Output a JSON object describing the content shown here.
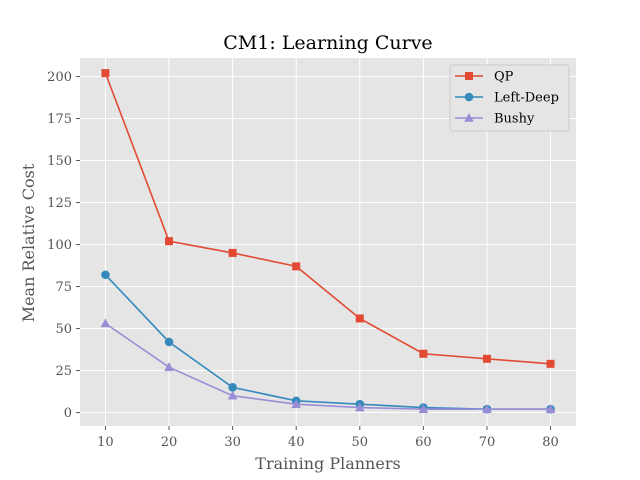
{
  "chart_data": {
    "type": "line",
    "title": "CM1: Learning Curve",
    "xlabel": "Training Planners",
    "ylabel": "Mean Relative Cost",
    "x": [
      10,
      20,
      30,
      40,
      50,
      60,
      70,
      80
    ],
    "xlim": [
      6,
      84
    ],
    "ylim": [
      -8,
      211
    ],
    "xticks": [
      10,
      20,
      30,
      40,
      50,
      60,
      70,
      80
    ],
    "yticks": [
      0,
      25,
      50,
      75,
      100,
      125,
      150,
      175,
      200
    ],
    "grid": true,
    "legend_position": "top-right",
    "series": [
      {
        "name": "QP",
        "color": "#E24A33",
        "marker": "square",
        "values": [
          202,
          102,
          95,
          87,
          56,
          35,
          32,
          29
        ]
      },
      {
        "name": "Left-Deep",
        "color": "#348ABD",
        "marker": "circle",
        "values": [
          82,
          42,
          15,
          7,
          5,
          3,
          2,
          2
        ]
      },
      {
        "name": "Bushy",
        "color": "#988ED5",
        "marker": "triangle",
        "values": [
          53,
          27,
          10,
          5,
          3,
          2,
          2,
          2
        ]
      }
    ]
  }
}
